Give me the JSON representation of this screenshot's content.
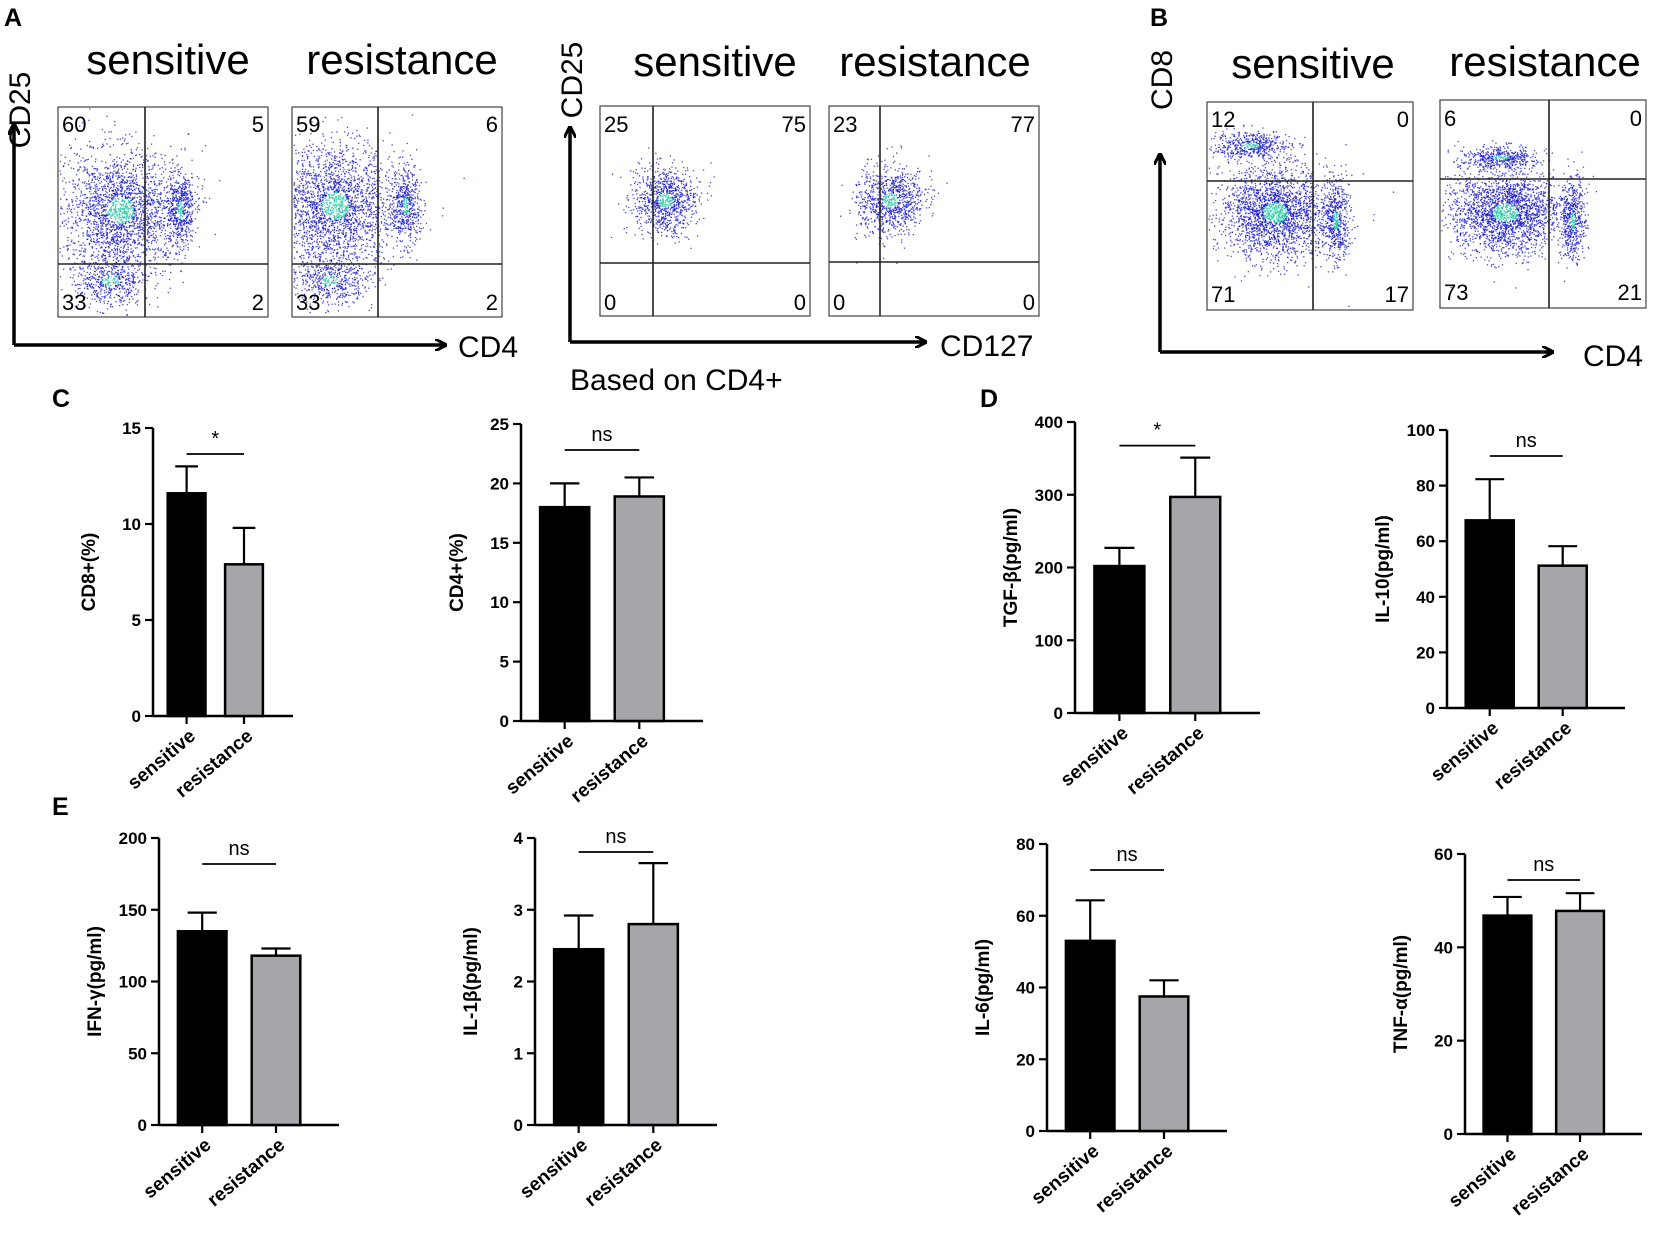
{
  "panel_labels": {
    "A": "A",
    "B": "B",
    "C": "C",
    "D": "D",
    "E": "E"
  },
  "flow_panels": [
    {
      "id": "A-left",
      "y_axis_label": "CD25",
      "x_axis_label": "CD4",
      "note": "",
      "plots": [
        {
          "title": "sensitive",
          "quadrants": {
            "ul": "60",
            "ur": "5",
            "ll": "33",
            "lr": "2"
          }
        },
        {
          "title": "resistance",
          "quadrants": {
            "ul": "59",
            "ur": "6",
            "ll": "33",
            "lr": "2"
          }
        }
      ]
    },
    {
      "id": "A-right",
      "y_axis_label": "CD25",
      "x_axis_label": "CD127",
      "note": "Based on CD4+",
      "plots": [
        {
          "title": "sensitive",
          "quadrants": {
            "ul": "25",
            "ur": "75",
            "ll": "0",
            "lr": "0"
          }
        },
        {
          "title": "resistance",
          "quadrants": {
            "ul": "23",
            "ur": "77",
            "ll": "0",
            "lr": "0"
          }
        }
      ]
    },
    {
      "id": "B",
      "y_axis_label": "CD8",
      "x_axis_label": "CD4",
      "note": "",
      "plots": [
        {
          "title": "sensitive",
          "quadrants": {
            "ul": "12",
            "ur": "0",
            "ll": "71",
            "lr": "17"
          }
        },
        {
          "title": "resistance",
          "quadrants": {
            "ul": "6",
            "ur": "0",
            "ll": "73",
            "lr": "21"
          }
        }
      ]
    }
  ],
  "colors": {
    "sensitive": "#000000",
    "resistance": "#a6a6aa",
    "axis": "#000000",
    "scatter_low": "#1a1ad0",
    "scatter_high": "#20c8a0"
  },
  "chart_data": [
    {
      "id": "C1",
      "type": "bar",
      "categories": [
        "sensitive",
        "resistance"
      ],
      "values": [
        11.6,
        7.9
      ],
      "errors": [
        1.4,
        1.9
      ],
      "ylabel": "CD8+(%)",
      "ylim": [
        0,
        15
      ],
      "yticks": [
        "0",
        "5",
        "10",
        "15"
      ],
      "significance": "*"
    },
    {
      "id": "C2",
      "type": "bar",
      "categories": [
        "sensitive",
        "resistance"
      ],
      "values": [
        18.0,
        18.9
      ],
      "errors": [
        2.0,
        1.6
      ],
      "ylabel": "CD4+(%)",
      "ylim": [
        0,
        25
      ],
      "yticks": [
        "0",
        "5",
        "10",
        "15",
        "20",
        "25"
      ],
      "significance": "ns"
    },
    {
      "id": "D1",
      "type": "bar",
      "categories": [
        "sensitive",
        "resistance"
      ],
      "values": [
        202,
        297
      ],
      "errors": [
        25,
        54
      ],
      "ylabel": "TGF-β(pg/ml)",
      "ylim": [
        0,
        400
      ],
      "yticks": [
        "0",
        "100",
        "200",
        "300",
        "400"
      ],
      "significance": "*"
    },
    {
      "id": "D2",
      "type": "bar",
      "categories": [
        "sensitive",
        "resistance"
      ],
      "values": [
        67.5,
        51.2
      ],
      "errors": [
        14.8,
        7.0
      ],
      "ylabel": "IL-10(pg/ml)",
      "ylim": [
        0,
        100
      ],
      "yticks": [
        "0",
        "20",
        "40",
        "60",
        "80",
        "100"
      ],
      "significance": "ns"
    },
    {
      "id": "E1",
      "type": "bar",
      "categories": [
        "sensitive",
        "resistance"
      ],
      "values": [
        135,
        118
      ],
      "errors": [
        13,
        5
      ],
      "ylabel": "IFN-γ(pg/ml)",
      "ylim": [
        0,
        200
      ],
      "yticks": [
        "0",
        "50",
        "100",
        "150",
        "200"
      ],
      "significance": "ns"
    },
    {
      "id": "E2",
      "type": "bar",
      "categories": [
        "sensitive",
        "resistance"
      ],
      "values": [
        2.45,
        2.8
      ],
      "errors": [
        0.47,
        0.85
      ],
      "ylabel": "IL-1β(pg/ml)",
      "ylim": [
        0,
        4
      ],
      "yticks": [
        "0",
        "1",
        "2",
        "3",
        "4"
      ],
      "significance": "ns"
    },
    {
      "id": "E3",
      "type": "bar",
      "categories": [
        "sensitive",
        "resistance"
      ],
      "values": [
        53,
        37.5
      ],
      "errors": [
        11.3,
        4.5
      ],
      "ylabel": "IL-6(pg/ml)",
      "ylim": [
        0,
        80
      ],
      "yticks": [
        "0",
        "20",
        "40",
        "60",
        "80"
      ],
      "significance": "ns"
    },
    {
      "id": "E4",
      "type": "bar",
      "categories": [
        "sensitive",
        "resistance"
      ],
      "values": [
        46.8,
        47.8
      ],
      "errors": [
        4.0,
        3.8
      ],
      "ylabel": "TNF-α(pg/ml)",
      "ylim": [
        0,
        60
      ],
      "yticks": [
        "0",
        "20",
        "40",
        "60"
      ],
      "significance": "ns"
    }
  ]
}
